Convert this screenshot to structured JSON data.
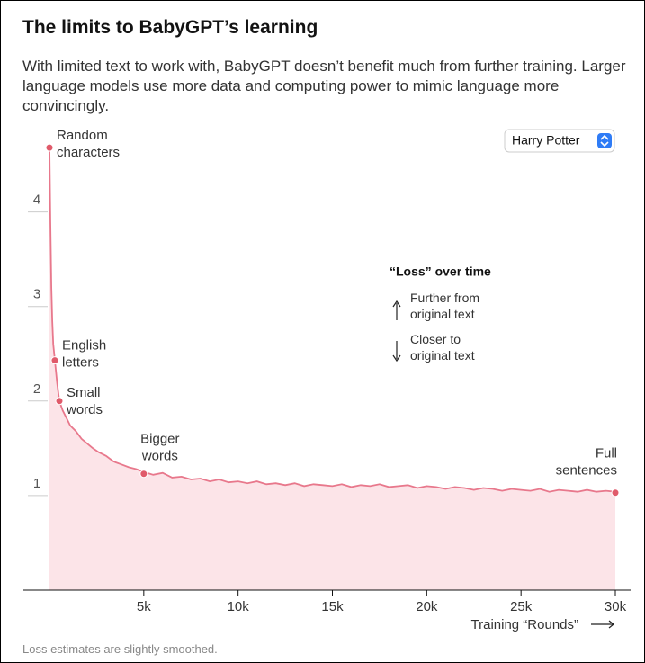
{
  "chart_data": {
    "type": "line",
    "title": "The limits to BabyGPT’s learning",
    "subtitle": "With limited text to work with, BabyGPT doesn’t benefit much from further training. Larger language models use more data and computing power to mimic language more convincingly.",
    "selector": "Harry Potter",
    "legend_title": "“Loss” over time",
    "legend_up": [
      "Further from",
      "original text"
    ],
    "legend_down": [
      "Closer to",
      "original text"
    ],
    "x_label": "Training “Rounds”",
    "note": "Loss estimates are slightly smoothed.",
    "color": "#e8788c",
    "area_color": "#fce4e8",
    "point_color": "#e05a6a",
    "xlim": [
      0,
      30000
    ],
    "ylim": [
      0,
      4.9
    ],
    "xticks": [
      {
        "value": 5000,
        "label": "5k"
      },
      {
        "value": 10000,
        "label": "10k"
      },
      {
        "value": 15000,
        "label": "15k"
      },
      {
        "value": 20000,
        "label": "20k"
      },
      {
        "value": 25000,
        "label": "25k"
      },
      {
        "value": 30000,
        "label": "30k"
      }
    ],
    "yticks": [
      1,
      2,
      3,
      4
    ],
    "x": [
      0,
      50,
      100,
      150,
      200,
      286,
      400,
      525,
      700,
      900,
      1100,
      1400,
      1700,
      2000,
      2300,
      2600,
      3000,
      3400,
      3800,
      4200,
      4600,
      5000,
      5500,
      6000,
      6500,
      7000,
      7500,
      8000,
      8500,
      9000,
      9500,
      10000,
      10500,
      11000,
      11500,
      12000,
      12500,
      13000,
      13500,
      14000,
      14500,
      15000,
      15500,
      16000,
      16500,
      17000,
      17500,
      18000,
      18500,
      19000,
      19500,
      20000,
      20500,
      21000,
      21500,
      22000,
      22500,
      23000,
      23500,
      24000,
      24500,
      25000,
      25500,
      26000,
      26500,
      27000,
      27500,
      28000,
      28500,
      29000,
      29500,
      30000
    ],
    "values": [
      4.68,
      3.9,
      3.2,
      2.85,
      2.6,
      2.43,
      2.2,
      2.0,
      1.9,
      1.82,
      1.74,
      1.68,
      1.6,
      1.55,
      1.5,
      1.46,
      1.42,
      1.36,
      1.33,
      1.3,
      1.28,
      1.25,
      1.22,
      1.24,
      1.19,
      1.2,
      1.17,
      1.18,
      1.15,
      1.17,
      1.14,
      1.15,
      1.13,
      1.15,
      1.12,
      1.13,
      1.11,
      1.13,
      1.1,
      1.12,
      1.11,
      1.1,
      1.12,
      1.09,
      1.11,
      1.1,
      1.12,
      1.09,
      1.1,
      1.11,
      1.08,
      1.1,
      1.09,
      1.07,
      1.09,
      1.08,
      1.06,
      1.08,
      1.07,
      1.05,
      1.07,
      1.06,
      1.05,
      1.07,
      1.04,
      1.06,
      1.05,
      1.04,
      1.06,
      1.04,
      1.05,
      1.04
    ],
    "annotations": [
      {
        "x": 0,
        "y": 4.68,
        "label": [
          "Random",
          "characters"
        ]
      },
      {
        "x": 286,
        "y": 2.43,
        "label": [
          "English",
          "letters"
        ]
      },
      {
        "x": 525,
        "y": 2.0,
        "label": [
          "Small",
          "words"
        ]
      },
      {
        "x": 5000,
        "y": 1.23,
        "label": [
          "Bigger",
          "words"
        ]
      },
      {
        "x": 30000,
        "y": 1.03,
        "label": [
          "Full",
          "sentences"
        ]
      }
    ]
  }
}
